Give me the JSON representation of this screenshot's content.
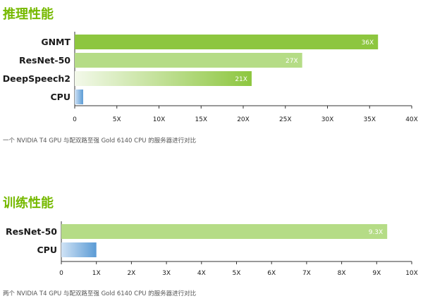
{
  "sections": [
    {
      "title": "推理性能",
      "note": "一个 NVIDIA T4 GPU 与配双路至强 Gold 6140 CPU 的服务器进行对比"
    },
    {
      "title": "训练性能",
      "note": "两个 NVIDIA T4 GPU 与配双路至强 Gold 6140 CPU 的服务器进行对比"
    }
  ],
  "colors": {
    "accent": "#76b900",
    "bar_green": "#8dc63f",
    "bar_light": "#b5dc86",
    "cpu_blue": "#5b9bd5"
  },
  "chart_data": [
    {
      "type": "bar",
      "orientation": "horizontal",
      "categories": [
        "GNMT",
        "ResNet-50",
        "DeepSpeech2",
        "CPU"
      ],
      "values": [
        36,
        27,
        21,
        1
      ],
      "data_labels": [
        "36X",
        "27X",
        "21X",
        ""
      ],
      "xlim": [
        0,
        40
      ],
      "xticks": [
        0,
        5,
        10,
        15,
        20,
        25,
        30,
        35,
        40
      ],
      "xtick_labels": [
        "0",
        "5X",
        "10X",
        "15X",
        "20X",
        "25X",
        "30X",
        "35X",
        "40X"
      ],
      "bar_styles": [
        "solid-green",
        "light-green",
        "fade-green",
        "blue"
      ],
      "grid": false
    },
    {
      "type": "bar",
      "orientation": "horizontal",
      "categories": [
        "ResNet-50",
        "CPU"
      ],
      "values": [
        9.3,
        1
      ],
      "data_labels": [
        "9.3X",
        ""
      ],
      "xlim": [
        0,
        10
      ],
      "xticks": [
        0,
        1,
        2,
        3,
        4,
        5,
        6,
        7,
        8,
        9,
        10
      ],
      "xtick_labels": [
        "0",
        "1X",
        "2X",
        "3X",
        "4X",
        "5X",
        "6X",
        "7X",
        "8X",
        "9X",
        "10X"
      ],
      "bar_styles": [
        "light-green",
        "blue"
      ],
      "grid": false
    }
  ]
}
